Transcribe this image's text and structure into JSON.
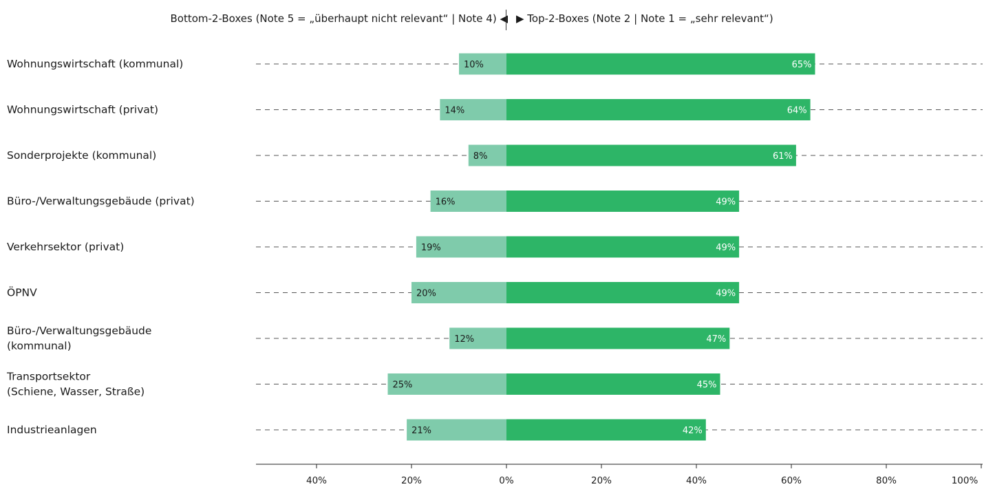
{
  "header": {
    "left_text": "Bottom-2-Boxes (Note 5 = „überhaupt nicht relevant“ | Note 4) ◀",
    "right_text": "▶ Top-2-Boxes (Note 2 | Note 1 = „sehr relevant“)"
  },
  "colors": {
    "top2": "#2db567",
    "bottom2": "#7fcbab",
    "text_dark": "#1a1a1a",
    "text_light": "#ffffff",
    "gridline": "#555555"
  },
  "chart_data": {
    "type": "bar",
    "orientation": "horizontal-diverging",
    "categories": [
      [
        "Wohnungswirtschaft (kommunal)"
      ],
      [
        "Wohnungswirtschaft (privat)"
      ],
      [
        "Sonderprojekte (kommunal)"
      ],
      [
        "Büro-/Verwaltungsgebäude (privat)"
      ],
      [
        "Verkehrsektor (privat)"
      ],
      [
        "ÖPNV"
      ],
      [
        "Büro-/Verwaltungsgebäude",
        "(kommunal)"
      ],
      [
        "Transportsektor",
        "(Schiene, Wasser, Straße)"
      ],
      [
        "Industrieanlagen"
      ]
    ],
    "series": [
      {
        "key": "bottom2",
        "values": [
          10,
          14,
          8,
          16,
          19,
          20,
          12,
          25,
          21
        ],
        "labels": [
          "10%",
          "14%",
          "8%",
          "16%",
          "19%",
          "20%",
          "12%",
          "25%",
          "21%"
        ]
      },
      {
        "key": "top2",
        "values": [
          65,
          64,
          61,
          49,
          49,
          49,
          47,
          45,
          42
        ],
        "labels": [
          "65%",
          "64%",
          "61%",
          "49%",
          "49%",
          "49%",
          "47%",
          "45%",
          "42%"
        ]
      }
    ],
    "xlim": [
      -53,
      100
    ],
    "xticks": [
      -40,
      -20,
      0,
      20,
      40,
      60,
      80,
      100
    ],
    "xtick_labels": [
      "40%",
      "20%",
      "0%",
      "20%",
      "40%",
      "60%",
      "80%",
      "100%"
    ],
    "gridlines": "dashed horizontal per category",
    "legend": "top"
  }
}
